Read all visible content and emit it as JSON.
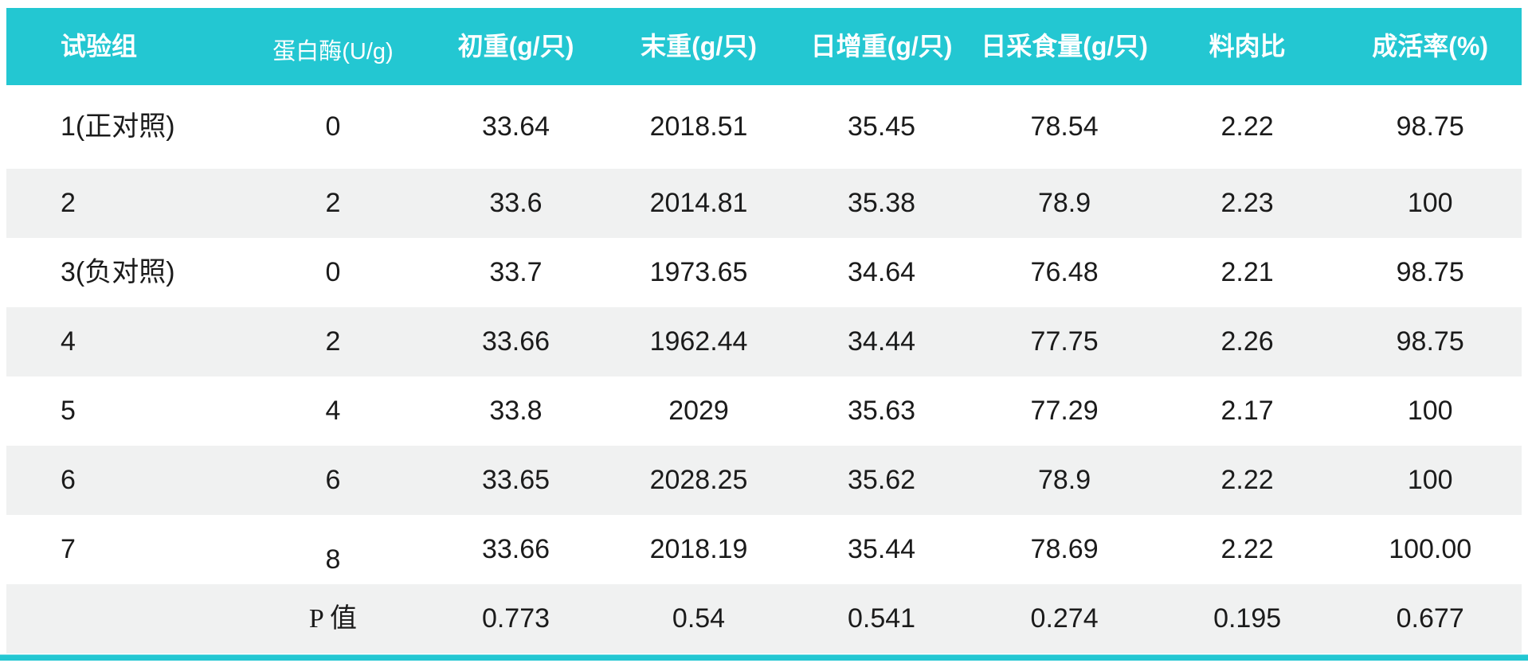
{
  "colors": {
    "header_bg": "#23C7D2",
    "header_text": "#FFFFFF",
    "row_alt_bg": "#F0F1F1",
    "body_text": "#1B1B1B",
    "accent_bar": "#23C7D2"
  },
  "chart_data": {
    "type": "table",
    "columns": [
      "试验组",
      "蛋白酶(U/g)",
      "初重(g/只)",
      "末重(g/只)",
      "日增重(g/只)",
      "日采食量(g/只)",
      "料肉比",
      "成活率(%)"
    ],
    "rows": [
      [
        "1(正对照)",
        "0",
        "33.64",
        "2018.51",
        "35.45",
        "78.54",
        "2.22",
        "98.75"
      ],
      [
        "2",
        "2",
        "33.6",
        "2014.81",
        "35.38",
        "78.9",
        "2.23",
        "100"
      ],
      [
        "3(负对照)",
        "0",
        "33.7",
        "1973.65",
        "34.64",
        "76.48",
        "2.21",
        "98.75"
      ],
      [
        "4",
        "2",
        "33.66",
        "1962.44",
        "34.44",
        "77.75",
        "2.26",
        "98.75"
      ],
      [
        "5",
        "4",
        "33.8",
        "2029",
        "35.63",
        "77.29",
        "2.17",
        "100"
      ],
      [
        "6",
        "6",
        "33.65",
        "2028.25",
        "35.62",
        "78.9",
        "2.22",
        "100"
      ],
      [
        "7",
        "8",
        "33.66",
        "2018.19",
        "35.44",
        "78.69",
        "2.22",
        "100.00"
      ],
      [
        "",
        "P 值",
        "0.773",
        "0.54",
        "0.541",
        "0.274",
        "0.195",
        "0.677"
      ]
    ],
    "layout": {
      "grid": "off",
      "row_striping": "alternating white / light-gray",
      "first_column_align": "left",
      "other_columns_align": "center"
    }
  }
}
